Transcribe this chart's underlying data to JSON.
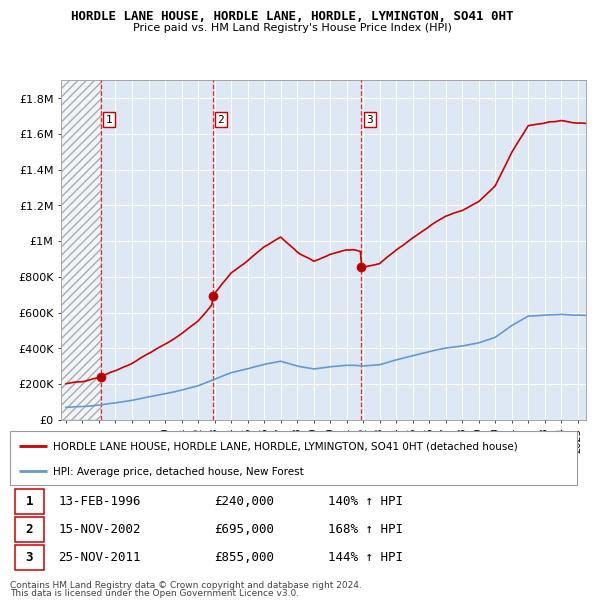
{
  "title": "HORDLE LANE HOUSE, HORDLE LANE, HORDLE, LYMINGTON, SO41 0HT",
  "subtitle": "Price paid vs. HM Land Registry's House Price Index (HPI)",
  "ylabel_ticks": [
    "£0",
    "£200K",
    "£400K",
    "£600K",
    "£800K",
    "£1M",
    "£1.2M",
    "£1.4M",
    "£1.6M",
    "£1.8M"
  ],
  "ytick_values": [
    0,
    200000,
    400000,
    600000,
    800000,
    1000000,
    1200000,
    1400000,
    1600000,
    1800000
  ],
  "ylim": [
    0,
    1900000
  ],
  "xlim_start": 1993.7,
  "xlim_end": 2025.5,
  "sale1_year": 1996.1,
  "sale1_price": 240000,
  "sale2_year": 2002.88,
  "sale2_price": 695000,
  "sale3_year": 2011.9,
  "sale3_price": 855000,
  "red_line_color": "#cc0000",
  "blue_line_color": "#6699cc",
  "legend1": "HORDLE LANE HOUSE, HORDLE LANE, HORDLE, LYMINGTON, SO41 0HT (detached house)",
  "legend2": "HPI: Average price, detached house, New Forest",
  "sale1_date": "13-FEB-1996",
  "sale1_pct": "140%",
  "sale2_date": "15-NOV-2002",
  "sale2_pct": "168%",
  "sale3_date": "25-NOV-2011",
  "sale3_pct": "144%",
  "footer1": "Contains HM Land Registry data © Crown copyright and database right 2024.",
  "footer2": "This data is licensed under the Open Government Licence v3.0."
}
